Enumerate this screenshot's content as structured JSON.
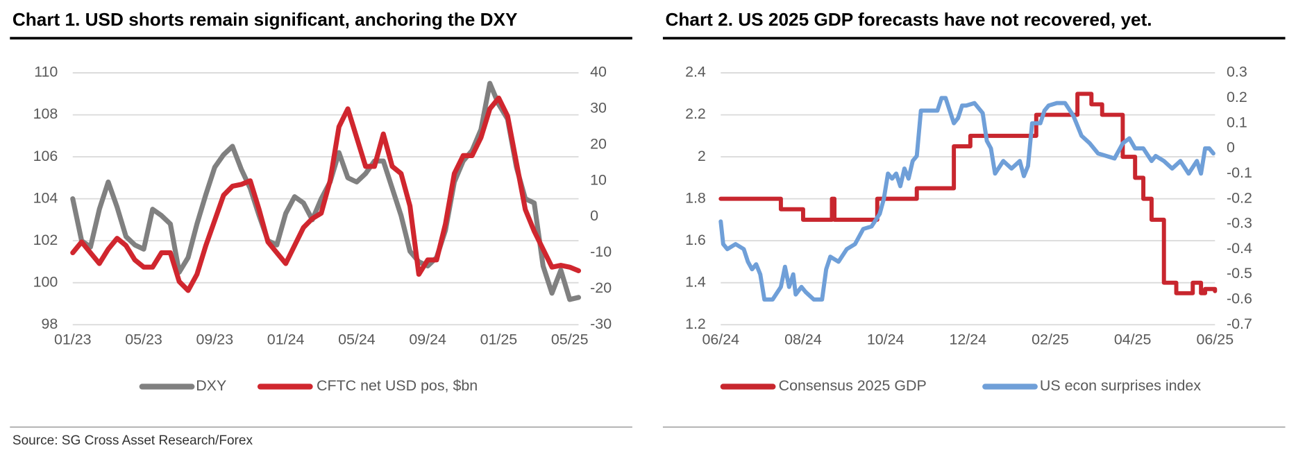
{
  "source": "Source: SG Cross Asset Research/Forex",
  "chart_data": [
    {
      "type": "line",
      "title": "Chart 1. USD shorts remain significant, anchoring the DXY",
      "x": [
        0,
        0.5,
        1,
        1.5,
        2,
        2.5,
        3,
        3.5,
        4,
        4.5,
        5,
        5.5,
        6,
        6.5,
        7,
        7.5,
        8,
        8.5,
        9,
        9.5,
        10,
        10.5,
        11,
        11.5,
        12,
        12.5,
        13,
        13.5,
        14,
        14.5,
        15,
        15.5,
        16,
        16.5,
        17,
        17.5,
        18,
        18.5,
        19,
        19.5,
        20,
        20.5,
        21,
        21.5,
        22,
        22.5,
        23,
        23.5,
        24,
        24.5,
        25,
        25.5,
        26,
        26.5,
        27,
        27.5,
        28,
        28.5
      ],
      "xlim": [
        0,
        28.5
      ],
      "xticks": [
        {
          "value": 0,
          "label": "01/23"
        },
        {
          "value": 4,
          "label": "05/23"
        },
        {
          "value": 8,
          "label": "09/23"
        },
        {
          "value": 12,
          "label": "01/24"
        },
        {
          "value": 16,
          "label": "05/24"
        },
        {
          "value": 20,
          "label": "09/24"
        },
        {
          "value": 24,
          "label": "01/25"
        },
        {
          "value": 28,
          "label": "05/25"
        }
      ],
      "ylim": [
        98,
        110
      ],
      "yticks": [
        98,
        100,
        102,
        104,
        106,
        108,
        110
      ],
      "y2lim": [
        -30,
        40
      ],
      "y2ticks": [
        -30,
        -20,
        -10,
        0,
        10,
        20,
        30,
        40
      ],
      "grid": true,
      "series": [
        {
          "name": "DXY",
          "color": "#808080",
          "values": [
            104,
            102,
            101.7,
            103.5,
            104.8,
            103.6,
            102.2,
            101.8,
            101.6,
            103.5,
            103.2,
            102.8,
            100.5,
            101.2,
            102.8,
            104.2,
            105.5,
            106.1,
            106.5,
            105.4,
            104.5,
            103.2,
            102,
            101.8,
            103.3,
            104.1,
            103.8,
            103,
            104,
            104.8,
            106.2,
            105,
            104.8,
            105.2,
            105.8,
            105.8,
            104.5,
            103.2,
            101.5,
            101,
            100.8,
            101.2,
            102.5,
            104.8,
            105.8,
            106.3,
            107.3,
            109.5,
            108.5,
            107.8,
            105.5,
            104,
            103.8,
            100.8,
            99.5,
            100.6,
            99.2,
            99.3
          ]
        },
        {
          "name": "CFTC net USD pos, $bn",
          "color": "#d0262e",
          "axis": "y2",
          "values": [
            -10,
            -7,
            -10,
            -13,
            -9,
            -6,
            -8,
            -12,
            -14,
            -14,
            -10,
            -10,
            -18,
            -20.5,
            -16,
            -8,
            -1,
            6,
            8.5,
            9,
            10,
            2,
            -7,
            -10,
            -13,
            -8,
            -3,
            -0.5,
            1,
            10,
            25,
            30,
            22,
            14,
            14,
            23,
            14,
            12,
            3,
            -16,
            -12,
            -12,
            -2,
            12,
            17,
            17,
            22,
            30,
            33,
            28,
            15,
            2,
            -4,
            -9,
            -14,
            -13.5,
            -14,
            -15
          ]
        }
      ]
    },
    {
      "type": "line",
      "title": "Chart 2. US 2025 GDP forecasts have not recovered, yet.",
      "xlim": [
        0,
        12
      ],
      "xticks": [
        {
          "value": 0,
          "label": "06/24"
        },
        {
          "value": 2,
          "label": "08/24"
        },
        {
          "value": 4,
          "label": "10/24"
        },
        {
          "value": 6,
          "label": "12/24"
        },
        {
          "value": 8,
          "label": "02/25"
        },
        {
          "value": 10,
          "label": "04/25"
        },
        {
          "value": 12,
          "label": "06/25"
        }
      ],
      "ylim": [
        1.2,
        2.4
      ],
      "yticks": [
        1.2,
        1.4,
        1.6,
        1.8,
        2,
        2.2,
        2.4
      ],
      "y2lim": [
        -0.7,
        0.3
      ],
      "y2ticks": [
        -0.7,
        -0.6,
        -0.5,
        -0.4,
        -0.3,
        -0.2,
        -0.1,
        0,
        0.1,
        0.2,
        0.3
      ],
      "grid": true,
      "series": [
        {
          "name": "Consensus 2025 GDP",
          "color": "#c8262e",
          "step": true,
          "x": [
            0,
            1.46,
            2,
            2.7,
            2.76,
            3.8,
            4.76,
            5.66,
            6.06,
            7.66,
            8.66,
            9,
            9.26,
            9.76,
            10.06,
            10.26,
            10.46,
            10.76,
            11.06,
            11.46,
            11.66,
            11.76,
            12
          ],
          "values": [
            1.8,
            1.75,
            1.7,
            1.8,
            1.7,
            1.8,
            1.85,
            2.05,
            2.1,
            2.2,
            2.3,
            2.25,
            2.2,
            2,
            1.9,
            1.8,
            1.7,
            1.4,
            1.35,
            1.4,
            1.35,
            1.37,
            1.36
          ]
        },
        {
          "name": "US econ surprises index",
          "color": "#6f9fd8",
          "axis": "y2",
          "x": [
            0,
            0.06,
            0.16,
            0.36,
            0.56,
            0.66,
            0.76,
            0.86,
            0.96,
            1.06,
            1.26,
            1.46,
            1.56,
            1.66,
            1.76,
            1.82,
            1.96,
            2.06,
            2.26,
            2.46,
            2.56,
            2.66,
            2.86,
            3.06,
            3.26,
            3.46,
            3.66,
            3.86,
            3.96,
            4.06,
            4.16,
            4.26,
            4.36,
            4.46,
            4.56,
            4.66,
            4.76,
            4.86,
            5.06,
            5.26,
            5.36,
            5.46,
            5.56,
            5.66,
            5.76,
            5.86,
            5.96,
            6.16,
            6.36,
            6.46,
            6.56,
            6.66,
            6.86,
            7.06,
            7.26,
            7.36,
            7.46,
            7.56,
            7.76,
            7.86,
            7.96,
            8.16,
            8.36,
            8.56,
            8.76,
            8.96,
            9.16,
            9.36,
            9.56,
            9.76,
            9.92,
            10.06,
            10.26,
            10.46,
            10.56,
            10.76,
            10.96,
            11.16,
            11.36,
            11.56,
            11.66,
            11.76,
            11.86,
            11.96
          ],
          "values": [
            -0.29,
            -0.38,
            -0.4,
            -0.38,
            -0.4,
            -0.45,
            -0.48,
            -0.46,
            -0.5,
            -0.6,
            -0.6,
            -0.55,
            -0.47,
            -0.55,
            -0.5,
            -0.58,
            -0.55,
            -0.57,
            -0.6,
            -0.6,
            -0.48,
            -0.43,
            -0.45,
            -0.4,
            -0.38,
            -0.32,
            -0.31,
            -0.26,
            -0.2,
            -0.1,
            -0.12,
            -0.1,
            -0.15,
            -0.08,
            -0.12,
            -0.05,
            -0.03,
            0.15,
            0.15,
            0.15,
            0.2,
            0.2,
            0.15,
            0.1,
            0.12,
            0.17,
            0.17,
            0.18,
            0.14,
            0.03,
            0,
            -0.1,
            -0.05,
            -0.08,
            -0.05,
            -0.11,
            -0.07,
            0.1,
            0.1,
            0.15,
            0.17,
            0.18,
            0.18,
            0.13,
            0.05,
            0.02,
            -0.02,
            -0.03,
            -0.04,
            0.02,
            0.04,
            0,
            0,
            -0.05,
            -0.03,
            -0.05,
            -0.08,
            -0.05,
            -0.1,
            -0.05,
            -0.1,
            0,
            0,
            -0.02
          ]
        }
      ]
    }
  ]
}
